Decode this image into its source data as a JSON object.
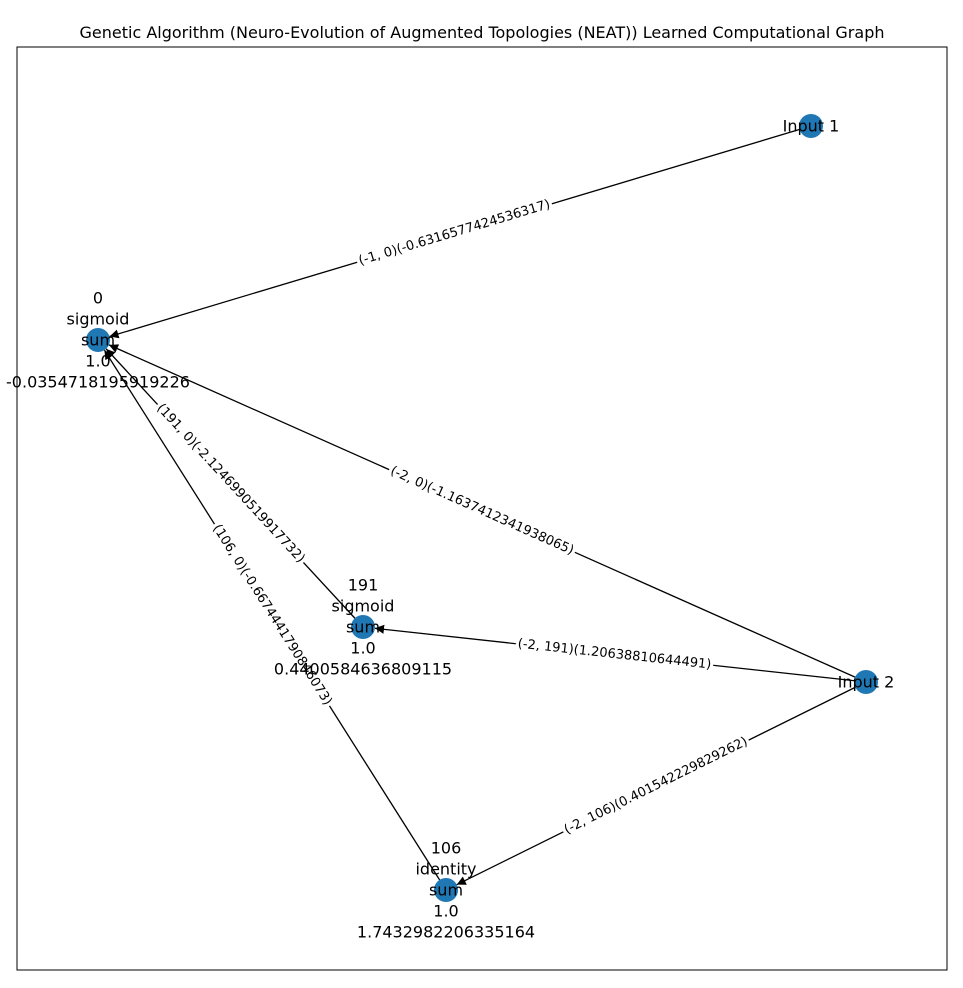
{
  "title": "Genetic Algorithm (Neuro-Evolution of Augmented Topologies (NEAT)) Learned Computational Graph",
  "colors": {
    "node": "#1f77b4",
    "edge": "#000000",
    "background": "#ffffff"
  },
  "nodes": [
    {
      "id": "input1",
      "lines": [
        "Input 1"
      ]
    },
    {
      "id": "input2",
      "lines": [
        "Input 2"
      ]
    },
    {
      "id": "node0",
      "lines": [
        "0",
        "sigmoid",
        "sum",
        "1.0",
        "-0.0354718195919226"
      ]
    },
    {
      "id": "node191",
      "lines": [
        "191",
        "sigmoid",
        "sum",
        "1.0",
        "0.4400584636809115"
      ]
    },
    {
      "id": "node106",
      "lines": [
        "106",
        "identity",
        "sum",
        "1.0",
        "1.7432982206335164"
      ]
    }
  ],
  "edges": [
    {
      "source": "input1",
      "target": "node0",
      "label": "(-1, 0)(-0.6316577424536317)"
    },
    {
      "source": "input2",
      "target": "node0",
      "label": "(-2, 0)(-1.163741234193806 5)"
    },
    {
      "source": "node191",
      "target": "node0",
      "label": "(191, 0)(-2.1246990519917732)"
    },
    {
      "source": "node106",
      "target": "node0",
      "label": "(106, 0)(-0.6674441790846073)"
    },
    {
      "source": "input2",
      "target": "node191",
      "label": "(-2, 191)(1.20638810644491)"
    },
    {
      "source": "input2",
      "target": "node106",
      "label": "(-2, 106)(0.40154222 9829262)"
    }
  ]
}
